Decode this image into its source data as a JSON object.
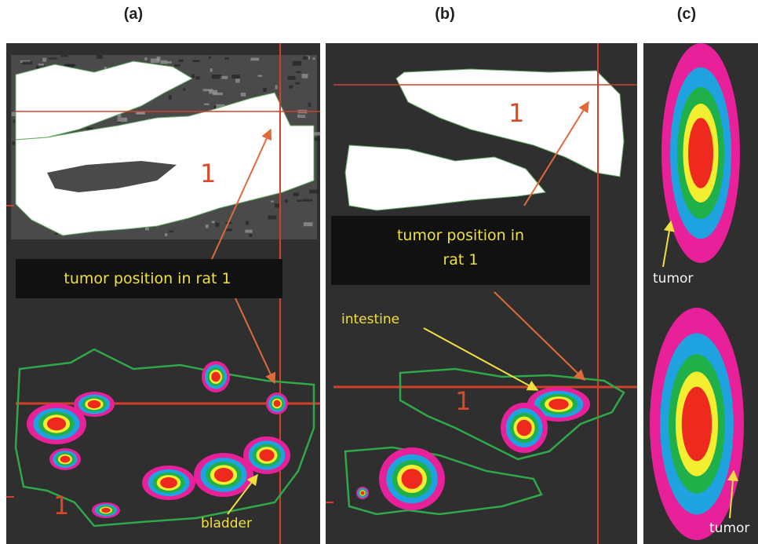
{
  "panels": [
    {
      "label": "(a)",
      "callout": "tumor position in rat 1",
      "numbers": [
        "1",
        "1"
      ],
      "organ": "bladder"
    },
    {
      "label": "(b)",
      "callout": [
        "tumor position in",
        "rat 1"
      ],
      "numbers": [
        "1",
        "1"
      ],
      "organ": "intestine"
    },
    {
      "label": "(c)",
      "tumors": [
        "tumor",
        "tumor"
      ]
    }
  ]
}
